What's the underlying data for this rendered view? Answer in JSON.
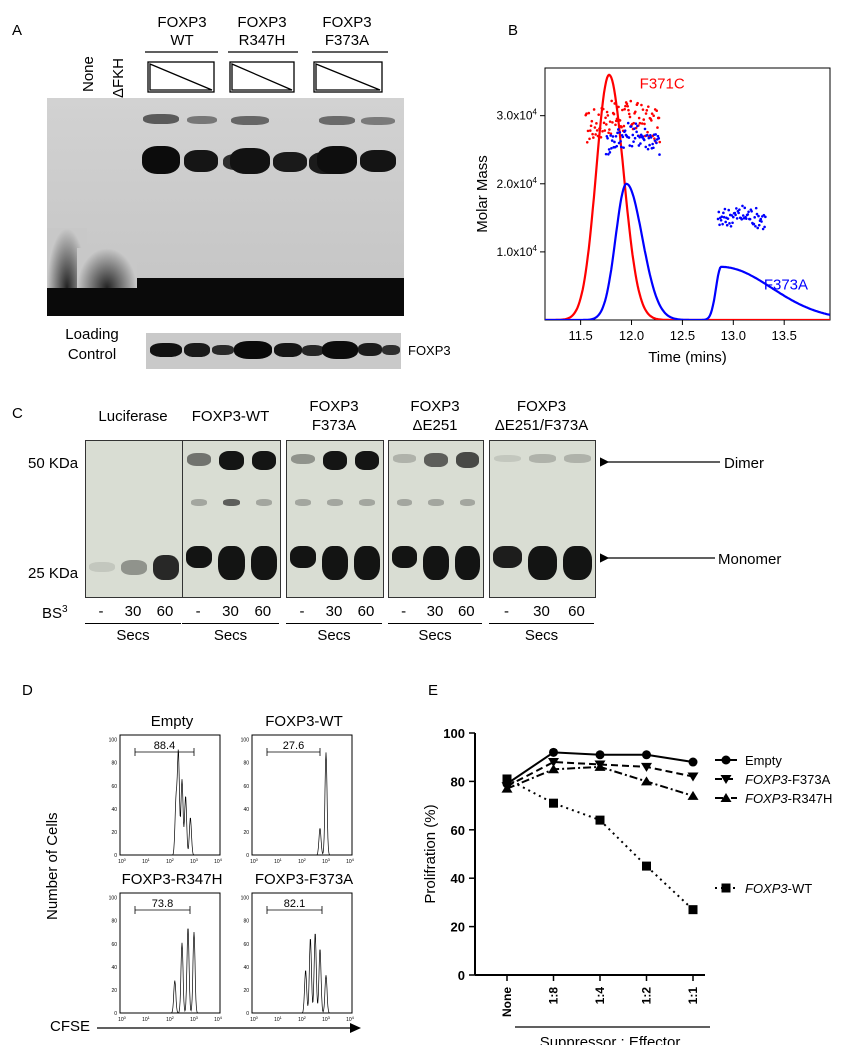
{
  "panel_a": {
    "letter": "A",
    "lane_none": "None",
    "lane_dfkh": "ΔFKH",
    "groups": [
      {
        "line1": "FOXP3",
        "line2": "WT"
      },
      {
        "line1": "FOXP3",
        "line2": "R347H"
      },
      {
        "line1": "FOXP3",
        "line2": "F373A"
      }
    ],
    "loading_line1": "Loading",
    "loading_line2": "Control",
    "loading_protein": "FOXP3"
  },
  "panel_b": {
    "letter": "B",
    "chart_data": {
      "type": "line",
      "xlabel": "Time (mins)",
      "ylabel": "Molar Mass",
      "xlim": [
        11.15,
        13.95
      ],
      "ylim": [
        0,
        37000
      ],
      "x_ticks": [
        "11.5",
        "12.0",
        "12.5",
        "13.0",
        "13.5"
      ],
      "y_ticks": [
        {
          "base": "1.0x10",
          "exp": "4",
          "value": 10000
        },
        {
          "base": "2.0x10",
          "exp": "4",
          "value": 20000
        },
        {
          "base": "3.0x10",
          "exp": "4",
          "value": 30000
        }
      ],
      "series": [
        {
          "name": "F371C",
          "color": "#ff0000",
          "trace_peaks": [
            {
              "center": 11.78,
              "height": 36000,
              "width_left": 0.18,
              "width_right": 0.2
            }
          ],
          "mass_points": {
            "x_range": [
              11.55,
              12.28
            ],
            "mean": 29000,
            "spread": 2500
          }
        },
        {
          "name": "F373A",
          "color": "#0000ff",
          "trace_peaks": [
            {
              "center": 11.95,
              "height": 20000,
              "width_left": 0.15,
              "width_right": 0.22
            },
            {
              "center": 12.88,
              "height": 7800,
              "width_left": 0.07,
              "width_right": 0.7
            }
          ],
          "mass_points": [
            {
              "x_range": [
                11.75,
                12.28
              ],
              "mean": 26500,
              "spread": 1800
            },
            {
              "x_range": [
                12.85,
                13.32
              ],
              "mean": 15000,
              "spread": 1500
            }
          ]
        }
      ]
    }
  },
  "panel_c": {
    "letter": "C",
    "mw_50": "50 KDa",
    "mw_25": "25 KDa",
    "bs3": "BS",
    "bs3_sup": "3",
    "blots": [
      {
        "line1": "Luciferase",
        "line2": ""
      },
      {
        "line1": "FOXP3-WT",
        "line2": ""
      },
      {
        "line1": "FOXP3",
        "line2": "F373A"
      },
      {
        "line1": "FOXP3",
        "line2": "ΔE251"
      },
      {
        "line1": "FOXP3",
        "line2": "ΔE251/F373A"
      }
    ],
    "times": [
      "-",
      "30",
      "60"
    ],
    "secs": "Secs",
    "dimer": "Dimer",
    "monomer": "Monomer"
  },
  "panel_d": {
    "letter": "D",
    "ylabel": "Number of Cells",
    "xlabel": "CFSE",
    "y_ticks": [
      "0",
      "20",
      "40",
      "60",
      "80",
      "100"
    ],
    "x_ticks": [
      {
        "base": "10",
        "exp": "0"
      },
      {
        "base": "10",
        "exp": "1"
      },
      {
        "base": "10",
        "exp": "2"
      },
      {
        "base": "10",
        "exp": "3"
      },
      {
        "base": "10",
        "exp": "4"
      }
    ],
    "histograms": [
      {
        "title": "Empty",
        "gate": "88.4"
      },
      {
        "title": "FOXP3-WT",
        "gate": "27.6"
      },
      {
        "title": "FOXP3-R347H",
        "gate": "73.8"
      },
      {
        "title": "FOXP3-F373A",
        "gate": "82.1"
      }
    ]
  },
  "panel_e": {
    "letter": "E",
    "chart_data": {
      "type": "line",
      "xlabel": "Suppressor : Effector",
      "ylabel": "Prolifration (%)",
      "categories": [
        "None",
        "1:8",
        "1:4",
        "1:2",
        "1:1"
      ],
      "ylim": [
        0,
        100
      ],
      "y_ticks": [
        "0",
        "20",
        "40",
        "60",
        "80",
        "100"
      ],
      "series": [
        {
          "name": "Empty",
          "marker": "circle",
          "dash": "solid",
          "values": [
            79,
            92,
            91,
            91,
            88
          ]
        },
        {
          "name": "FOXP3-F373A",
          "italic": "FOXP3",
          "rest": "-F373A",
          "marker": "triangle-down",
          "dash": "dashed",
          "values": [
            78,
            88,
            87,
            86,
            82
          ]
        },
        {
          "name": "FOXP3-R347H",
          "italic": "FOXP3",
          "rest": "-R347H",
          "marker": "triangle-up",
          "dash": "dashdot",
          "values": [
            77,
            85,
            86,
            80,
            74
          ]
        },
        {
          "name": "FOXP3-WT",
          "italic": "FOXP3",
          "rest": "-WT",
          "marker": "square",
          "dash": "dotted",
          "values": [
            81,
            71,
            64,
            45,
            27
          ]
        }
      ]
    }
  }
}
